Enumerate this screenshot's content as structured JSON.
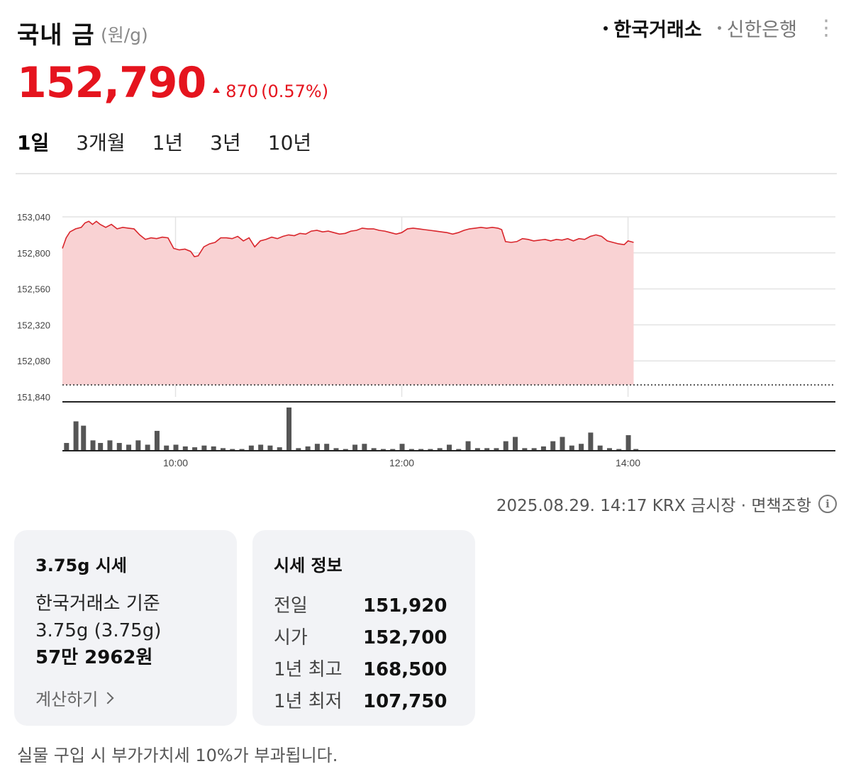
{
  "header": {
    "title": "국내 금",
    "unit": "(원/g)",
    "sources": [
      {
        "label": "한국거래소",
        "active": true
      },
      {
        "label": "신한은행",
        "active": false
      }
    ]
  },
  "price": {
    "value": "152,790",
    "change": "870",
    "change_pct": "(0.57%)"
  },
  "tabs": [
    {
      "label": "1일",
      "active": true
    },
    {
      "label": "3개월",
      "active": false
    },
    {
      "label": "1년",
      "active": false
    },
    {
      "label": "3년",
      "active": false
    },
    {
      "label": "10년",
      "active": false
    }
  ],
  "timestamp": "2025.08.29. 14:17 KRX 금시장 · 면책조항",
  "card_gram": {
    "title": "3.75g 시세",
    "basis": "한국거래소 기준",
    "weight": "3.75g (3.75g)",
    "amount": "57만 2962원",
    "calc_label": "계산하기"
  },
  "card_info": {
    "title": "시세 정보",
    "rows": [
      {
        "label": "전일",
        "value": "151,920"
      },
      {
        "label": "시가",
        "value": "152,700"
      },
      {
        "label": "1년 최고",
        "value": "168,500"
      },
      {
        "label": "1년 최저",
        "value": "107,750"
      }
    ]
  },
  "footnote": "실물 구입 시 부가가치세 10%가 부과됩니다.",
  "colors": {
    "up": "#e5141e",
    "fill": "#f9d2d3",
    "line": "#d9262c",
    "volume": "#555555"
  },
  "chart_data": {
    "type": "area",
    "y_ticks": [
      "153,040",
      "152,800",
      "152,560",
      "152,320",
      "152,080",
      "151,840"
    ],
    "ylim": [
      151840,
      153040
    ],
    "x_ticks": [
      {
        "label": "10:00",
        "min": 60
      },
      {
        "label": "12:00",
        "min": 180
      },
      {
        "label": "14:00",
        "min": 300
      }
    ],
    "x_range_min": [
      0,
      410
    ],
    "baseline": 151920,
    "series": [
      {
        "min": 0,
        "v": 152830
      },
      {
        "min": 2,
        "v": 152900
      },
      {
        "min": 4,
        "v": 152940
      },
      {
        "min": 7,
        "v": 152960
      },
      {
        "min": 10,
        "v": 152970
      },
      {
        "min": 12,
        "v": 153000
      },
      {
        "min": 14,
        "v": 153010
      },
      {
        "min": 16,
        "v": 152990
      },
      {
        "min": 18,
        "v": 153010
      },
      {
        "min": 20,
        "v": 152990
      },
      {
        "min": 23,
        "v": 152970
      },
      {
        "min": 26,
        "v": 152990
      },
      {
        "min": 29,
        "v": 152960
      },
      {
        "min": 32,
        "v": 152970
      },
      {
        "min": 35,
        "v": 152965
      },
      {
        "min": 38,
        "v": 152960
      },
      {
        "min": 41,
        "v": 152920
      },
      {
        "min": 44,
        "v": 152890
      },
      {
        "min": 47,
        "v": 152900
      },
      {
        "min": 50,
        "v": 152895
      },
      {
        "min": 53,
        "v": 152905
      },
      {
        "min": 56,
        "v": 152900
      },
      {
        "min": 59,
        "v": 152830
      },
      {
        "min": 62,
        "v": 152820
      },
      {
        "min": 65,
        "v": 152825
      },
      {
        "min": 68,
        "v": 152810
      },
      {
        "min": 70,
        "v": 152775
      },
      {
        "min": 72,
        "v": 152780
      },
      {
        "min": 75,
        "v": 152840
      },
      {
        "min": 78,
        "v": 152860
      },
      {
        "min": 81,
        "v": 152870
      },
      {
        "min": 84,
        "v": 152900
      },
      {
        "min": 87,
        "v": 152900
      },
      {
        "min": 90,
        "v": 152895
      },
      {
        "min": 93,
        "v": 152910
      },
      {
        "min": 96,
        "v": 152880
      },
      {
        "min": 99,
        "v": 152900
      },
      {
        "min": 102,
        "v": 152840
      },
      {
        "min": 105,
        "v": 152880
      },
      {
        "min": 108,
        "v": 152890
      },
      {
        "min": 111,
        "v": 152905
      },
      {
        "min": 114,
        "v": 152895
      },
      {
        "min": 117,
        "v": 152910
      },
      {
        "min": 120,
        "v": 152920
      },
      {
        "min": 123,
        "v": 152915
      },
      {
        "min": 126,
        "v": 152930
      },
      {
        "min": 129,
        "v": 152925
      },
      {
        "min": 132,
        "v": 152945
      },
      {
        "min": 135,
        "v": 152950
      },
      {
        "min": 138,
        "v": 152940
      },
      {
        "min": 141,
        "v": 152945
      },
      {
        "min": 144,
        "v": 152935
      },
      {
        "min": 147,
        "v": 152925
      },
      {
        "min": 150,
        "v": 152930
      },
      {
        "min": 153,
        "v": 152945
      },
      {
        "min": 156,
        "v": 152950
      },
      {
        "min": 159,
        "v": 152965
      },
      {
        "min": 162,
        "v": 152960
      },
      {
        "min": 165,
        "v": 152960
      },
      {
        "min": 168,
        "v": 152950
      },
      {
        "min": 171,
        "v": 152945
      },
      {
        "min": 174,
        "v": 152935
      },
      {
        "min": 177,
        "v": 152925
      },
      {
        "min": 180,
        "v": 152935
      },
      {
        "min": 183,
        "v": 152960
      },
      {
        "min": 186,
        "v": 152965
      },
      {
        "min": 189,
        "v": 152960
      },
      {
        "min": 192,
        "v": 152955
      },
      {
        "min": 195,
        "v": 152950
      },
      {
        "min": 198,
        "v": 152945
      },
      {
        "min": 201,
        "v": 152940
      },
      {
        "min": 204,
        "v": 152935
      },
      {
        "min": 207,
        "v": 152925
      },
      {
        "min": 210,
        "v": 152935
      },
      {
        "min": 213,
        "v": 152950
      },
      {
        "min": 216,
        "v": 152960
      },
      {
        "min": 219,
        "v": 152965
      },
      {
        "min": 222,
        "v": 152970
      },
      {
        "min": 225,
        "v": 152965
      },
      {
        "min": 228,
        "v": 152970
      },
      {
        "min": 231,
        "v": 152965
      },
      {
        "min": 233,
        "v": 152955
      },
      {
        "min": 235,
        "v": 152875
      },
      {
        "min": 238,
        "v": 152870
      },
      {
        "min": 241,
        "v": 152875
      },
      {
        "min": 244,
        "v": 152895
      },
      {
        "min": 247,
        "v": 152890
      },
      {
        "min": 250,
        "v": 152880
      },
      {
        "min": 253,
        "v": 152885
      },
      {
        "min": 256,
        "v": 152890
      },
      {
        "min": 259,
        "v": 152880
      },
      {
        "min": 262,
        "v": 152890
      },
      {
        "min": 265,
        "v": 152885
      },
      {
        "min": 268,
        "v": 152895
      },
      {
        "min": 271,
        "v": 152880
      },
      {
        "min": 274,
        "v": 152895
      },
      {
        "min": 277,
        "v": 152890
      },
      {
        "min": 280,
        "v": 152910
      },
      {
        "min": 283,
        "v": 152920
      },
      {
        "min": 286,
        "v": 152910
      },
      {
        "min": 289,
        "v": 152880
      },
      {
        "min": 292,
        "v": 152870
      },
      {
        "min": 295,
        "v": 152860
      },
      {
        "min": 298,
        "v": 152855
      },
      {
        "min": 300,
        "v": 152880
      },
      {
        "min": 303,
        "v": 152870
      }
    ],
    "volume": [
      {
        "min": 2,
        "h": 0.18
      },
      {
        "min": 7,
        "h": 0.68
      },
      {
        "min": 11,
        "h": 0.58
      },
      {
        "min": 16,
        "h": 0.24
      },
      {
        "min": 20,
        "h": 0.18
      },
      {
        "min": 25,
        "h": 0.24
      },
      {
        "min": 30,
        "h": 0.18
      },
      {
        "min": 35,
        "h": 0.14
      },
      {
        "min": 40,
        "h": 0.24
      },
      {
        "min": 45,
        "h": 0.14
      },
      {
        "min": 50,
        "h": 0.46
      },
      {
        "min": 55,
        "h": 0.12
      },
      {
        "min": 60,
        "h": 0.14
      },
      {
        "min": 65,
        "h": 0.1
      },
      {
        "min": 70,
        "h": 0.08
      },
      {
        "min": 75,
        "h": 0.12
      },
      {
        "min": 80,
        "h": 0.1
      },
      {
        "min": 85,
        "h": 0.06
      },
      {
        "min": 90,
        "h": 0.04
      },
      {
        "min": 95,
        "h": 0.04
      },
      {
        "min": 100,
        "h": 0.12
      },
      {
        "min": 105,
        "h": 0.14
      },
      {
        "min": 110,
        "h": 0.12
      },
      {
        "min": 115,
        "h": 0.08
      },
      {
        "min": 120,
        "h": 1.0
      },
      {
        "min": 125,
        "h": 0.06
      },
      {
        "min": 130,
        "h": 0.1
      },
      {
        "min": 135,
        "h": 0.16
      },
      {
        "min": 140,
        "h": 0.16
      },
      {
        "min": 145,
        "h": 0.06
      },
      {
        "min": 150,
        "h": 0.04
      },
      {
        "min": 155,
        "h": 0.14
      },
      {
        "min": 160,
        "h": 0.16
      },
      {
        "min": 165,
        "h": 0.06
      },
      {
        "min": 170,
        "h": 0.04
      },
      {
        "min": 175,
        "h": 0.04
      },
      {
        "min": 180,
        "h": 0.16
      },
      {
        "min": 185,
        "h": 0.04
      },
      {
        "min": 190,
        "h": 0.04
      },
      {
        "min": 195,
        "h": 0.04
      },
      {
        "min": 200,
        "h": 0.06
      },
      {
        "min": 205,
        "h": 0.14
      },
      {
        "min": 210,
        "h": 0.04
      },
      {
        "min": 215,
        "h": 0.22
      },
      {
        "min": 220,
        "h": 0.06
      },
      {
        "min": 225,
        "h": 0.06
      },
      {
        "min": 230,
        "h": 0.06
      },
      {
        "min": 235,
        "h": 0.22
      },
      {
        "min": 240,
        "h": 0.32
      },
      {
        "min": 245,
        "h": 0.06
      },
      {
        "min": 250,
        "h": 0.06
      },
      {
        "min": 255,
        "h": 0.1
      },
      {
        "min": 260,
        "h": 0.22
      },
      {
        "min": 265,
        "h": 0.32
      },
      {
        "min": 270,
        "h": 0.12
      },
      {
        "min": 275,
        "h": 0.16
      },
      {
        "min": 280,
        "h": 0.42
      },
      {
        "min": 285,
        "h": 0.12
      },
      {
        "min": 290,
        "h": 0.06
      },
      {
        "min": 295,
        "h": 0.04
      },
      {
        "min": 300,
        "h": 0.36
      },
      {
        "min": 304,
        "h": 0.04
      }
    ]
  }
}
